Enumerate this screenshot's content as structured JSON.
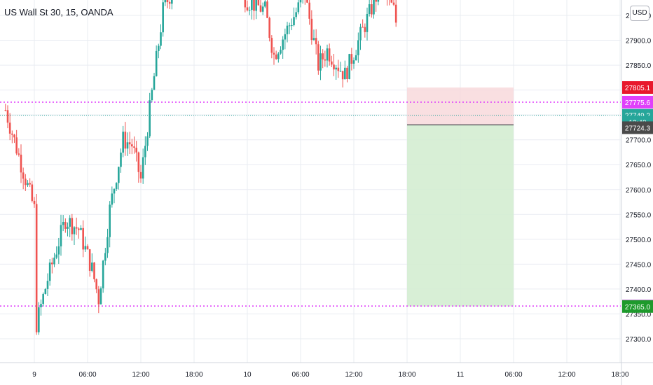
{
  "header": {
    "symbol_title": "US Wall St 30, 15, OANDA",
    "currency_button": "USD"
  },
  "colors": {
    "up": "#26a69a",
    "down": "#ef5350",
    "grid": "#e9ecf2",
    "hline": "#e040fb",
    "last_line": "#26a69a",
    "risk_zone": "#f8d7da",
    "reward_zone": "#d4edd2"
  },
  "chart_data": {
    "type": "candlestick",
    "ylim": [
      27260,
      28030
    ],
    "y_ticks": [
      "27300.0",
      "27350.0",
      "27400.0",
      "27450.0",
      "27500.0",
      "27550.0",
      "27600.0",
      "27650.0",
      "27700.0",
      "27750.0",
      "27800.0",
      "27850.0",
      "27900.0",
      "27950.0"
    ],
    "x_ticks": [
      "9",
      "06:00",
      "12:00",
      "18:00",
      "10",
      "06:00",
      "12:00",
      "18:00",
      "11",
      "06:00",
      "12:00",
      "18:00"
    ],
    "horizontal_levels": [
      {
        "value": 27775.6,
        "label": "27775.6",
        "style": "dotted",
        "color": "#e040fb"
      },
      {
        "value": 27365.8,
        "label": "27365.8",
        "style": "dotted",
        "color": "#e040fb"
      },
      {
        "value": 27749.2,
        "label": "27749.2",
        "style": "dotted",
        "color": "#26a69a"
      }
    ],
    "price_tags": [
      {
        "label": "27805.1",
        "value": 27805.1,
        "bg": "#e8182c"
      },
      {
        "label": "27775.6",
        "value": 27775.6,
        "bg": "#e040fb"
      },
      {
        "label": "27749.2",
        "value": 27749.2,
        "bg": "#26a69a"
      },
      {
        "label": "13:48",
        "value": 27735.5,
        "bg": "#26a69a"
      },
      {
        "label": "27724.3",
        "value": 27724.3,
        "bg": "#4a4a4a"
      },
      {
        "label": "27365.8",
        "value": 27365.8,
        "bg": "#e040fb"
      },
      {
        "label": "27365.0",
        "value": 27365.0,
        "bg": "#1e9a2c"
      }
    ],
    "position": {
      "entry": 27730,
      "stop": 27805.1,
      "target": 27365.0,
      "start_time": "10 18:00",
      "end_time": "11 06:00"
    },
    "candles": [
      {
        "t": "8 20:45",
        "o": 27720,
        "h": 27780,
        "c": 27750,
        "l": 27700
      },
      {
        "t": "9 00:30",
        "o": 27590,
        "h": 27660,
        "c": 27540,
        "l": 27500
      },
      {
        "t": "9 00:00",
        "o": 27300,
        "h": 27380,
        "c": 27350,
        "l": 27260
      },
      {
        "t": "9 06:00",
        "o": 27520,
        "h": 27600,
        "c": 27580,
        "l": 27490
      },
      {
        "t": "9 07:15",
        "o": 27380,
        "h": 27420,
        "c": 27400,
        "l": 27380
      },
      {
        "t": "9 09:30",
        "o": 27700,
        "h": 27780,
        "c": 27760,
        "l": 27660
      },
      {
        "t": "9 12:00",
        "o": 27620,
        "h": 27700,
        "c": 27680,
        "l": 27600
      },
      {
        "t": "9 15:00",
        "o": 27900,
        "h": 28020,
        "c": 28010,
        "l": 27880
      },
      {
        "t": "10 03:00",
        "o": 27900,
        "h": 27960,
        "c": 27870,
        "l": 27850
      },
      {
        "t": "10 08:00",
        "o": 27830,
        "h": 27870,
        "c": 27810,
        "l": 27795
      },
      {
        "t": "10 12:00",
        "o": 27860,
        "h": 27920,
        "c": 27880,
        "l": 27810
      },
      {
        "t": "10 15:00",
        "o": 27990,
        "h": 28020,
        "c": 27980,
        "l": 27940
      },
      {
        "t": "10 17:45",
        "o": 27780,
        "h": 27880,
        "c": 27745,
        "l": 27735
      }
    ]
  }
}
